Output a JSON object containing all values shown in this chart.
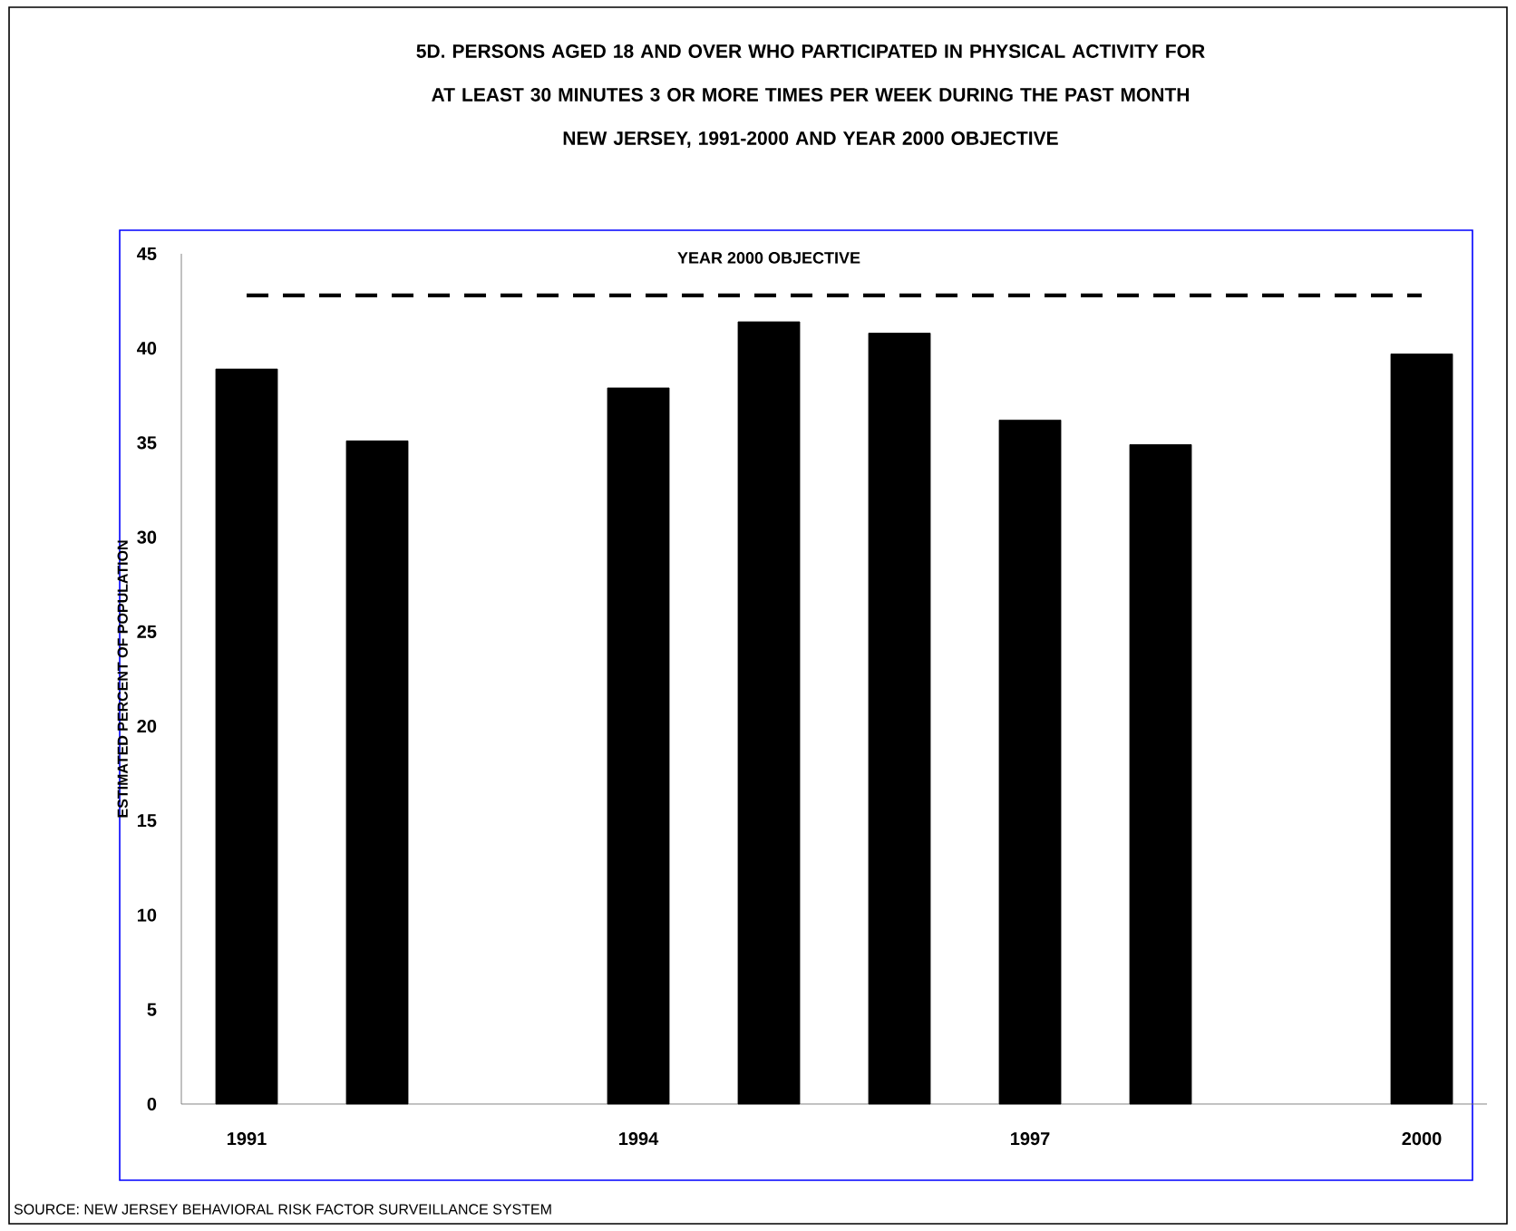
{
  "chart_data": {
    "type": "bar",
    "title": "5D. PERSONS AGED 18 AND OVER WHO PARTICIPATED IN PHYSICAL ACTIVITY FOR AT LEAST 30 MINUTES 3 OR MORE TIMES PER WEEK DURING THE PAST MONTH",
    "subtitle": "NEW JERSEY, 1991-2000 AND YEAR 2000 OBJECTIVE",
    "ylabel": "ESTIMATED PERCENT OF POPULATION",
    "categories": [
      "1991",
      null,
      null,
      "1994",
      null,
      null,
      "1997",
      null,
      null,
      "2000"
    ],
    "values": [
      38.9,
      35.1,
      null,
      37.9,
      41.4,
      40.8,
      36.2,
      34.9,
      null,
      39.7
    ],
    "color": "#000000",
    "ylim": [
      0,
      45
    ],
    "yticks": [
      0,
      5,
      10,
      15,
      20,
      25,
      30,
      35,
      40,
      45
    ],
    "ref_lines": [
      {
        "axis": "y",
        "value": 42.8,
        "label": "YEAR 2000 OBJECTIVE",
        "color": "#000000",
        "line_style": "dashed"
      }
    ],
    "annotations": [
      "SOURCE:  NEW JERSEY BEHAVIORAL RISK FACTOR SURVEILLANCE SYSTEM"
    ],
    "grid": false
  }
}
